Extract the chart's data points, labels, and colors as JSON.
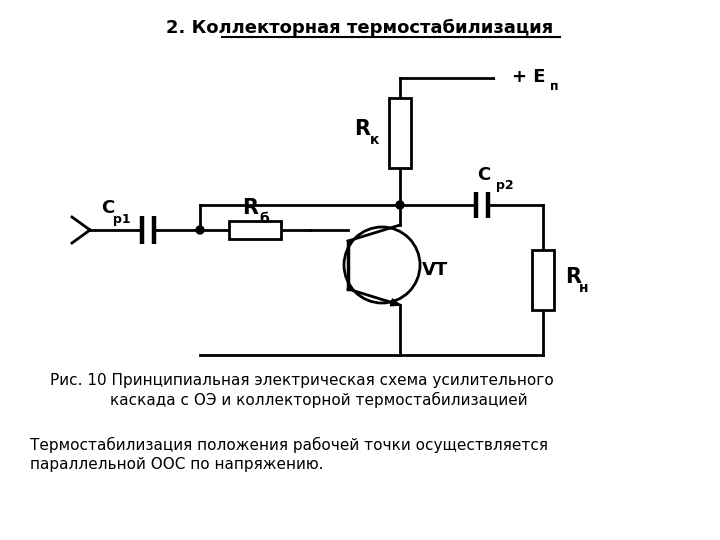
{
  "title": "2. Коллекторная термостабилизация",
  "fig_caption_line1": "Рис. 10 Принципиальная электрическая схема усилительного",
  "fig_caption_line2": "каскада с ОЭ и коллекторной термостабилизацией",
  "bottom_text_line1": "Термостабилизация положения рабочей точки осуществляется",
  "bottom_text_line2": "параллельной ООС по напряжению.",
  "bg_color": "#ffffff",
  "line_color": "#000000"
}
